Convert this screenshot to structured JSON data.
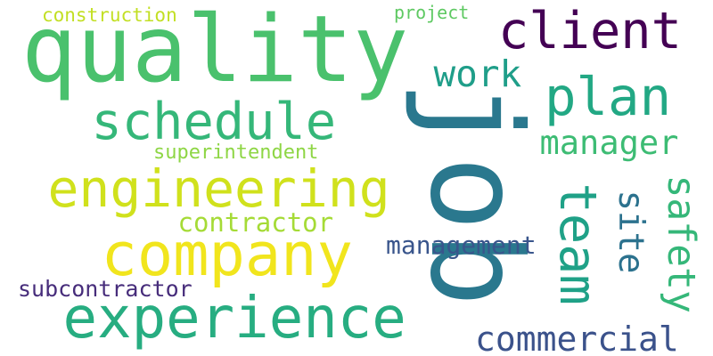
{
  "words": [
    {
      "id": "job",
      "text": "job",
      "color": "#2a788e"
    },
    {
      "id": "quality",
      "text": "quality",
      "color": "#4ac16d"
    },
    {
      "id": "client",
      "text": "client",
      "color": "#440154"
    },
    {
      "id": "plan",
      "text": "plan",
      "color": "#22a884"
    },
    {
      "id": "schedule",
      "text": "schedule",
      "color": "#35b779"
    },
    {
      "id": "engineering",
      "text": "engineering",
      "color": "#d0e11c"
    },
    {
      "id": "company",
      "text": "company",
      "color": "#f1e51d"
    },
    {
      "id": "experience",
      "text": "experience",
      "color": "#27ad81"
    },
    {
      "id": "team",
      "text": "team",
      "color": "#1fa187"
    },
    {
      "id": "manager",
      "text": "manager",
      "color": "#3dbc74"
    },
    {
      "id": "work",
      "text": "work",
      "color": "#1f9e89"
    },
    {
      "id": "safety",
      "text": "safety",
      "color": "#35b779"
    },
    {
      "id": "site",
      "text": "site",
      "color": "#2c728e"
    },
    {
      "id": "commercial",
      "text": "commercial",
      "color": "#3b528b"
    },
    {
      "id": "management",
      "text": "management",
      "color": "#39558c"
    },
    {
      "id": "contractor",
      "text": "contractor",
      "color": "#a5db36"
    },
    {
      "id": "subcontractor",
      "text": "subcontractor",
      "color": "#472d7b"
    },
    {
      "id": "superintendent",
      "text": "superintendent",
      "color": "#8ed645"
    },
    {
      "id": "construction",
      "text": "construction",
      "color": "#c2df23"
    },
    {
      "id": "project",
      "text": "project",
      "color": "#5ec962"
    }
  ]
}
